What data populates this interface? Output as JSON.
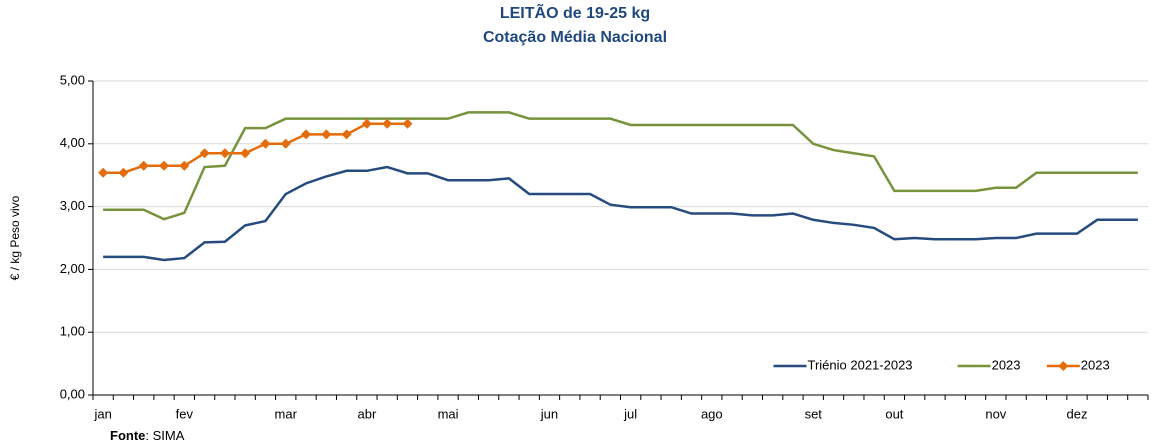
{
  "chart_data": {
    "type": "line",
    "title": "LEITÃO de 19-25 kg",
    "subtitle": "Cotação Média Nacional",
    "y_label": "€ / kg Peso vivo",
    "source_label": "Fonte",
    "source_text": ": SIMA",
    "categories": [
      "jan",
      null,
      null,
      null,
      "fev",
      null,
      null,
      null,
      null,
      "mar",
      null,
      null,
      null,
      "abr",
      null,
      null,
      null,
      "mai",
      null,
      null,
      null,
      null,
      "jun",
      null,
      null,
      null,
      "jul",
      null,
      null,
      null,
      "ago",
      null,
      null,
      null,
      null,
      "set",
      null,
      null,
      null,
      "out",
      null,
      null,
      null,
      null,
      "nov",
      null,
      null,
      null,
      "dez",
      null,
      null,
      null
    ],
    "series": [
      {
        "name": "Triénio 2021-2023",
        "color": "#264b7d",
        "marker": "none",
        "values": [
          2.2,
          2.2,
          2.2,
          2.15,
          2.18,
          2.43,
          2.44,
          2.7,
          2.77,
          3.2,
          3.37,
          3.48,
          3.57,
          3.57,
          3.63,
          3.53,
          3.53,
          3.42,
          3.42,
          3.42,
          3.45,
          3.2,
          3.2,
          3.2,
          3.2,
          3.03,
          2.99,
          2.99,
          2.99,
          2.89,
          2.89,
          2.89,
          2.86,
          2.86,
          2.89,
          2.79,
          2.74,
          2.71,
          2.66,
          2.48,
          2.5,
          2.48,
          2.48,
          2.48,
          2.5,
          2.5,
          2.57,
          2.57,
          2.57,
          2.79,
          2.79,
          2.79
        ]
      },
      {
        "name": "2023",
        "color": "#77933c",
        "marker": "none",
        "values": [
          2.95,
          2.95,
          2.95,
          2.8,
          2.9,
          3.63,
          3.65,
          4.25,
          4.25,
          4.4,
          4.4,
          4.4,
          4.4,
          4.4,
          4.4,
          4.4,
          4.4,
          4.4,
          4.5,
          4.5,
          4.5,
          4.4,
          4.4,
          4.4,
          4.4,
          4.4,
          4.3,
          4.3,
          4.3,
          4.3,
          4.3,
          4.3,
          4.3,
          4.3,
          4.3,
          4.0,
          3.9,
          3.85,
          3.8,
          3.25,
          3.25,
          3.25,
          3.25,
          3.25,
          3.3,
          3.3,
          3.54,
          3.54,
          3.54,
          3.54,
          3.54,
          3.54
        ]
      },
      {
        "name": "2023",
        "color": "#e46c0a",
        "marker": "diamond",
        "values": [
          3.54,
          3.54,
          3.65,
          3.65,
          3.65,
          3.85,
          3.85,
          3.85,
          4.0,
          4.0,
          4.15,
          4.15,
          4.15,
          4.32,
          4.32,
          4.32,
          null,
          null,
          null,
          null,
          null,
          null,
          null,
          null,
          null,
          null,
          null,
          null,
          null,
          null,
          null,
          null,
          null,
          null,
          null,
          null,
          null,
          null,
          null,
          null,
          null,
          null,
          null,
          null,
          null,
          null,
          null,
          null,
          null,
          null,
          null,
          null
        ]
      }
    ],
    "ylim": [
      0,
      5
    ],
    "yticks": [
      {
        "value": 0,
        "label": "0,00"
      },
      {
        "value": 1,
        "label": "1,00"
      },
      {
        "value": 2,
        "label": "2,00"
      },
      {
        "value": 3,
        "label": "3,00"
      },
      {
        "value": 4,
        "label": "4,00"
      },
      {
        "value": 5,
        "label": "5,00"
      }
    ],
    "grid": true,
    "legend": "bottom-right"
  }
}
